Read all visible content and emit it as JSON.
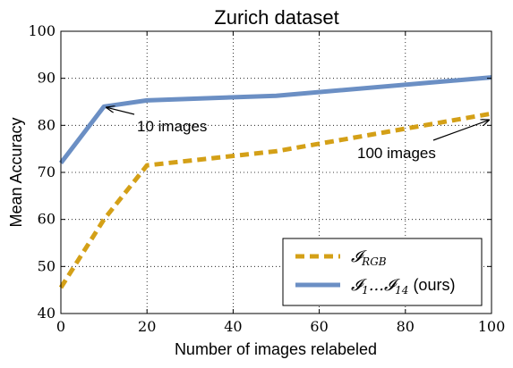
{
  "chart_data": {
    "type": "line",
    "title": "Zurich dataset",
    "xlabel": "Number of images relabeled",
    "ylabel": "Mean Accuracy",
    "xlim": [
      0,
      100
    ],
    "ylim": [
      40,
      100
    ],
    "xticks": [
      0,
      20,
      40,
      60,
      80,
      100
    ],
    "yticks": [
      40,
      50,
      60,
      70,
      80,
      90,
      100
    ],
    "grid": true,
    "legend_position": "bottom-right",
    "series": [
      {
        "name": "I_RGB",
        "legend_main": "𝓘",
        "legend_sub": "RGB",
        "color": "#d4a017",
        "style": "dashed",
        "x": [
          0,
          10,
          20,
          50,
          100
        ],
        "y": [
          45.5,
          60,
          71.5,
          74.5,
          82.5
        ]
      },
      {
        "name": "I_1...I_14 (ours)",
        "legend_main": "𝓘",
        "legend_sub": "1",
        "legend_mid": "...𝓘",
        "legend_sub2": "14",
        "legend_suffix": " (ours)",
        "color": "#6b8fc4",
        "style": "solid",
        "x": [
          0,
          10,
          20,
          50,
          100
        ],
        "y": [
          72,
          84,
          85.3,
          86.3,
          90.2
        ]
      }
    ],
    "annotations": [
      {
        "text": "10 images",
        "x": 10,
        "y": 84
      },
      {
        "text": "100 images",
        "x": 100,
        "y": 81.5
      }
    ]
  }
}
